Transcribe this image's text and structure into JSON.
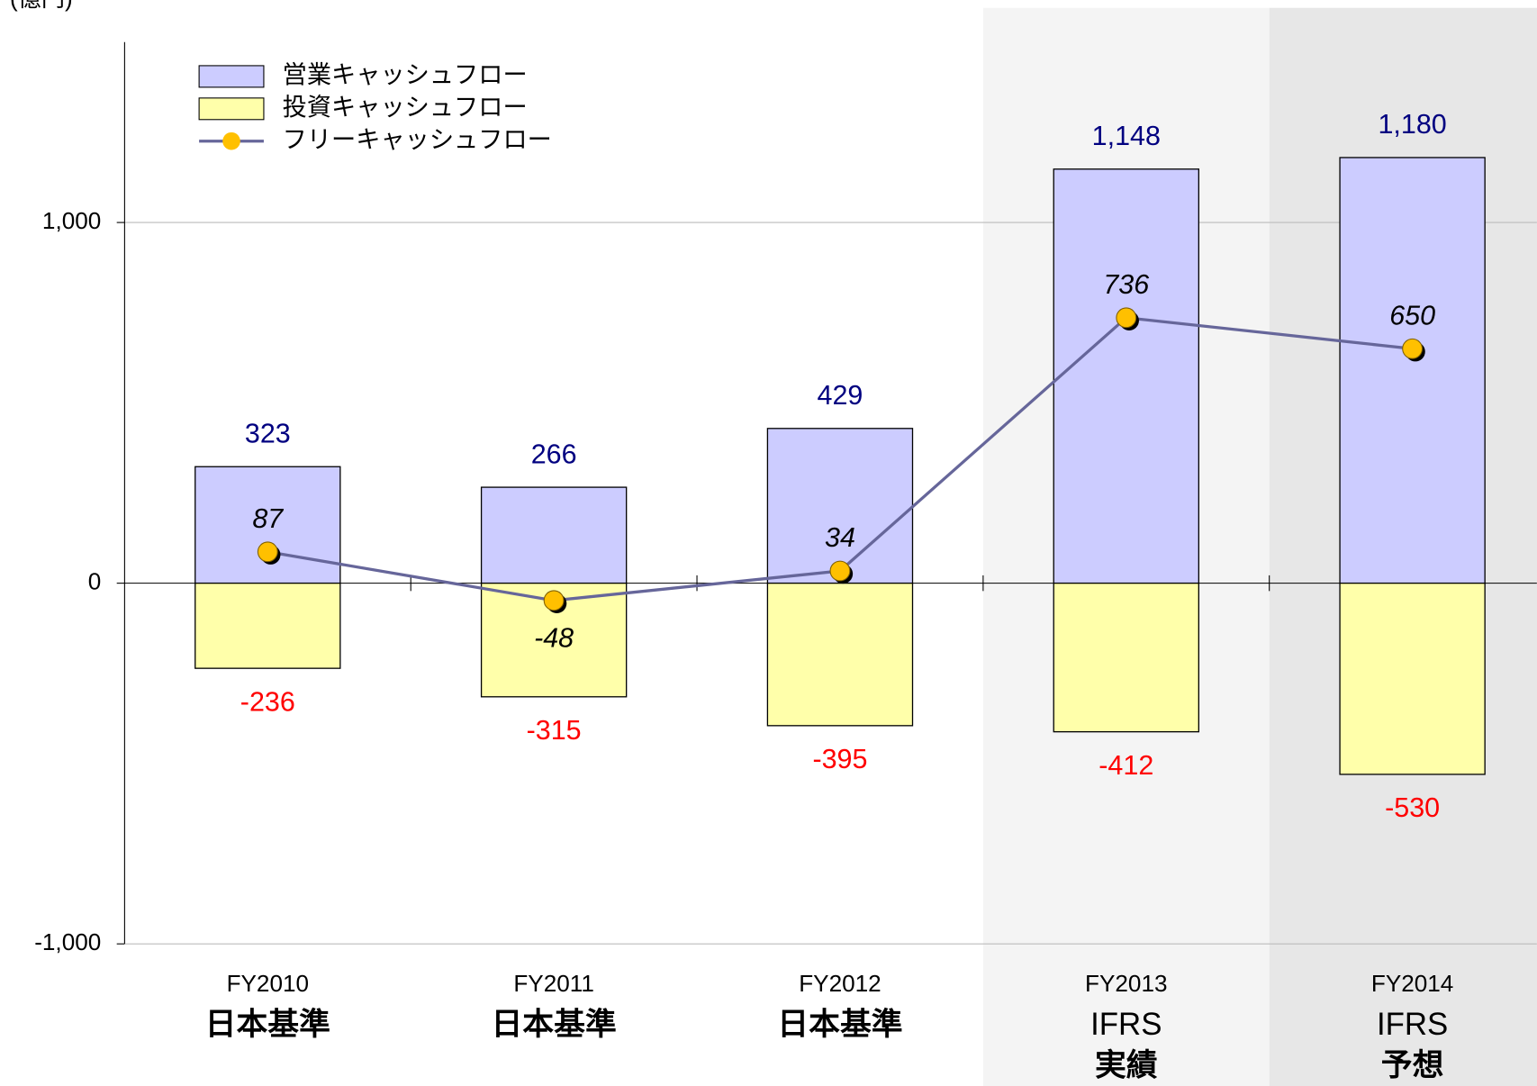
{
  "chart_data": {
    "type": "bar",
    "unit_label": "(億円)",
    "categories": [
      [
        "FY2010",
        "日本基準"
      ],
      [
        "FY2011",
        "日本基準"
      ],
      [
        "FY2012",
        "日本基準"
      ],
      [
        "FY2013",
        "IFRS",
        "実績"
      ],
      [
        "FY2014",
        "IFRS",
        "予想"
      ]
    ],
    "band_colors": [
      null,
      null,
      null,
      "#f4f4f4",
      "#e7e7e7"
    ],
    "series": [
      {
        "name": "営業キャッシュフロー",
        "type": "bar",
        "color": "#ccccff",
        "label_color": "#000080",
        "values": [
          323,
          266,
          429,
          1148,
          1180
        ],
        "value_labels": [
          "323",
          "266",
          "429",
          "1,148",
          "1,180"
        ]
      },
      {
        "name": "投資キャッシュフロー",
        "type": "bar",
        "color": "#ffffaa",
        "label_color": "#ff0000",
        "values": [
          -236,
          -315,
          -395,
          -412,
          -530
        ]
      },
      {
        "name": "フリーキャッシュフロー",
        "type": "line",
        "color": "#66669a",
        "marker_color": "#ffc000",
        "label_color": "#000000",
        "values": [
          87,
          -48,
          34,
          736,
          650
        ]
      }
    ],
    "ylim": [
      -1000,
      1500
    ],
    "yticks": [
      {
        "value": -1000,
        "label": "-1,000"
      },
      0,
      {
        "value": 1000,
        "label": "1,000"
      }
    ],
    "grid": true
  }
}
